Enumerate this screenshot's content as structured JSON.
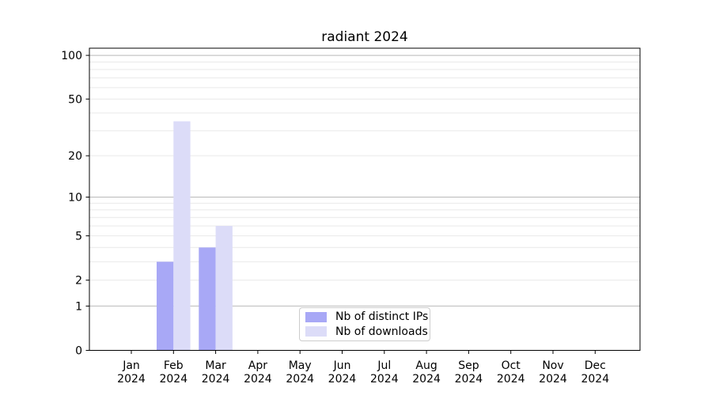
{
  "chart_data": {
    "type": "bar",
    "title": "radiant 2024",
    "x_axis": {
      "months": [
        "Jan",
        "Feb",
        "Mar",
        "Apr",
        "May",
        "Jun",
        "Jul",
        "Aug",
        "Sep",
        "Oct",
        "Nov",
        "Dec"
      ],
      "year_label": "2024"
    },
    "y_axis": {
      "scale": "log1p",
      "ticks": [
        0,
        1,
        2,
        5,
        10,
        20,
        50,
        100
      ],
      "major_gridlines": [
        1,
        10,
        100
      ],
      "minor_gridlines": [
        2,
        3,
        4,
        5,
        6,
        7,
        8,
        9,
        20,
        30,
        40,
        50,
        60,
        70,
        80,
        90
      ],
      "range": [
        0,
        112
      ]
    },
    "series": [
      {
        "name": "Nb of distinct IPs",
        "color": "#a8a8f6",
        "values": [
          0,
          3,
          4,
          0,
          0,
          0,
          0,
          0,
          0,
          0,
          0,
          0
        ]
      },
      {
        "name": "Nb of downloads",
        "color": "#dcdcf8",
        "values": [
          0,
          35,
          6,
          0,
          0,
          0,
          0,
          0,
          0,
          0,
          0,
          0
        ]
      }
    ],
    "legend": {
      "position": "lower center",
      "entries": [
        "Nb of distinct IPs",
        "Nb of downloads"
      ]
    },
    "styles": {
      "spine_color": "#000000",
      "text_color": "#000000",
      "major_grid_color": "#b9b9b9",
      "minor_grid_color": "#e9e9e9",
      "background": "#ffffff"
    }
  }
}
